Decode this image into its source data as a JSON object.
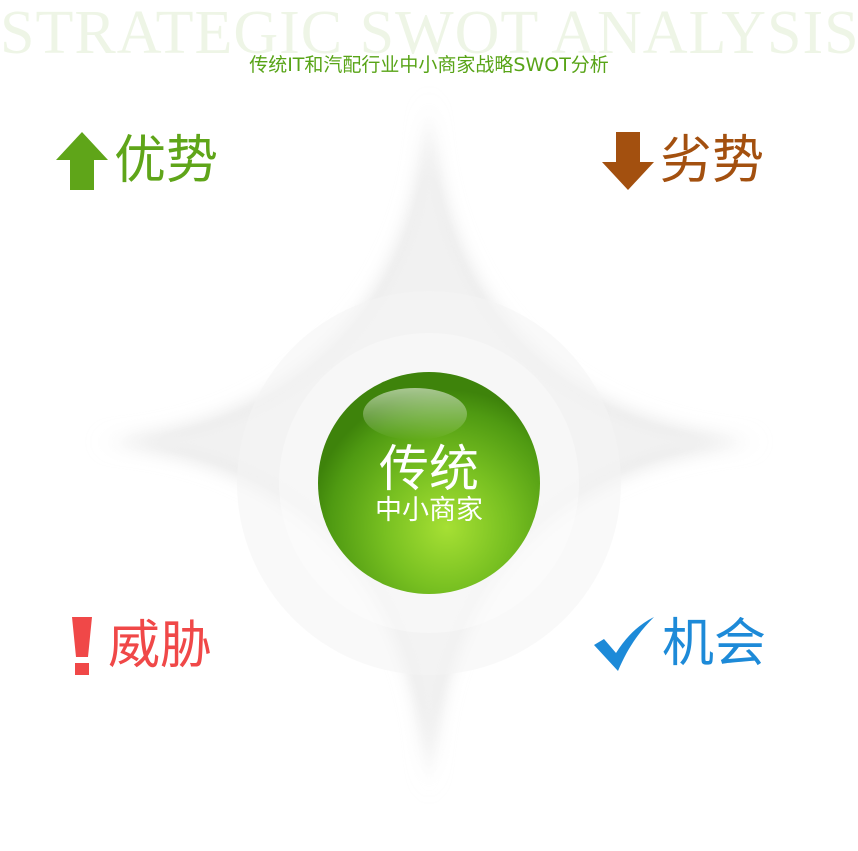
{
  "watermark": "STRATEGIC SWOT ANALYSIS",
  "subtitle": "传统IT和汽配行业中小商家战略SWOT分析",
  "center": {
    "main": "传统",
    "sub": "中小商家"
  },
  "quadrants": {
    "strengths": {
      "label": "优势",
      "icon": "arrow-up-icon",
      "color": "#5fa519"
    },
    "weaknesses": {
      "label": "劣势",
      "icon": "arrow-down-icon",
      "color": "#a3500f"
    },
    "threats": {
      "label": "威胁",
      "icon": "exclamation-icon",
      "color": "#f04848"
    },
    "opportunities": {
      "label": "机会",
      "icon": "checkmark-icon",
      "color": "#1d8ad8"
    }
  },
  "colors": {
    "sphere": "#6fb723",
    "sphere_highlight": "#b4e35a",
    "background_shape": "#ececec"
  }
}
